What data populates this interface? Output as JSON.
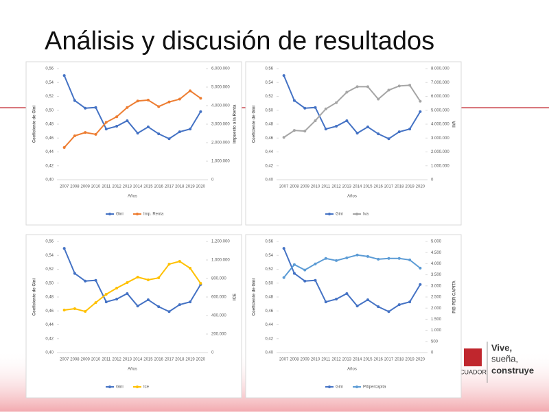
{
  "title": "Análisis y discusión de resultados",
  "logo": {
    "motto_1": "Vive,",
    "motto_2": "sueña,",
    "motto_3": "construye",
    "country": "CUADOR"
  },
  "chart_data": [
    {
      "type": "line",
      "categories": [
        "2007",
        "2008",
        "2009",
        "2010",
        "2011",
        "2012",
        "2013",
        "2014",
        "2015",
        "2016",
        "2017",
        "2018",
        "2019",
        "2020"
      ],
      "x_label": "Años",
      "y_label": "Coeficiente de Gini",
      "y2_label": "Impuesto a la Renta",
      "ylim": [
        0.4,
        0.56
      ],
      "yticks": [
        {
          "value": 0.4,
          "label": "0,40"
        },
        {
          "value": 0.42,
          "label": "0,42"
        },
        {
          "value": 0.44,
          "label": "0,44"
        },
        {
          "value": 0.46,
          "label": "0,46"
        },
        {
          "value": 0.48,
          "label": "0,48"
        },
        {
          "value": 0.5,
          "label": "0,50"
        },
        {
          "value": 0.52,
          "label": "0,52"
        },
        {
          "value": 0.54,
          "label": "0,54"
        },
        {
          "value": 0.56,
          "label": "0,56"
        }
      ],
      "y2lim": [
        0,
        6000000
      ],
      "y2ticks": [
        0,
        {
          "value": 1000000,
          "label": "1.000.000"
        },
        {
          "value": 2000000,
          "label": "2.000.000"
        },
        {
          "value": 3000000,
          "label": "3.000.000"
        },
        {
          "value": 4000000,
          "label": "4.000.000"
        },
        {
          "value": 5000000,
          "label": "5.000.000"
        },
        {
          "value": 6000000,
          "label": "6.000.000"
        }
      ],
      "series": [
        {
          "name": "Gini",
          "color": "#4472c4",
          "values": [
            0.55,
            0.514,
            0.503,
            0.504,
            0.473,
            0.477,
            0.485,
            0.467,
            0.476,
            0.466,
            0.459,
            0.469,
            0.473,
            0.498
          ]
        },
        {
          "name": "Imp. Renta",
          "color": "#ed7d31",
          "axis": "y2",
          "values": [
            1740000,
            2370000,
            2550000,
            2450000,
            3100000,
            3400000,
            3900000,
            4250000,
            4300000,
            3950000,
            4200000,
            4350000,
            4800000,
            4400000
          ]
        }
      ]
    },
    {
      "type": "line",
      "categories": [
        "2007",
        "2008",
        "2009",
        "2010",
        "2011",
        "2012",
        "2013",
        "2014",
        "2015",
        "2016",
        "2017",
        "2018",
        "2019",
        "2020"
      ],
      "x_label": "Años",
      "y_label": "Coeficiente de Gini",
      "y2_label": "IVA",
      "ylim": [
        0.4,
        0.56
      ],
      "yticks": [
        {
          "value": 0.4,
          "label": "0,40"
        },
        {
          "value": 0.42,
          "label": "0,42"
        },
        {
          "value": 0.44,
          "label": "0,44"
        },
        {
          "value": 0.46,
          "label": "0,46"
        },
        {
          "value": 0.48,
          "label": "0,48"
        },
        {
          "value": 0.5,
          "label": "0,50"
        },
        {
          "value": 0.52,
          "label": "0,52"
        },
        {
          "value": 0.54,
          "label": "0,54"
        },
        {
          "value": 0.56,
          "label": "0,56"
        }
      ],
      "y2lim": [
        0,
        8000000
      ],
      "y2ticks": [
        0,
        {
          "value": 1000000,
          "label": "1.000.000"
        },
        {
          "value": 2000000,
          "label": "2.000.000"
        },
        {
          "value": 3000000,
          "label": "3.000.000"
        },
        {
          "value": 4000000,
          "label": "4.000.000"
        },
        {
          "value": 5000000,
          "label": "5.000.000"
        },
        {
          "value": 6000000,
          "label": "6.000.000"
        },
        {
          "value": 7000000,
          "label": "7.000.000"
        },
        {
          "value": 8000000,
          "label": "8.000.000"
        }
      ],
      "series": [
        {
          "name": "Gini",
          "color": "#4472c4",
          "values": [
            0.55,
            0.514,
            0.503,
            0.504,
            0.473,
            0.477,
            0.485,
            0.467,
            0.476,
            0.466,
            0.459,
            0.469,
            0.473,
            0.498
          ]
        },
        {
          "name": "Iva",
          "color": "#a5a5a5",
          "axis": "y2",
          "values": [
            3050000,
            3550000,
            3500000,
            4250000,
            5100000,
            5550000,
            6300000,
            6700000,
            6700000,
            5800000,
            6450000,
            6750000,
            6800000,
            5650000
          ]
        }
      ]
    },
    {
      "type": "line",
      "categories": [
        "2007",
        "2008",
        "2009",
        "2010",
        "2011",
        "2012",
        "2013",
        "2014",
        "2015",
        "2016",
        "2017",
        "2018",
        "2019",
        "2020"
      ],
      "x_label": "Años",
      "y_label": "Coeficiente de Gini",
      "y2_label": "ICE",
      "ylim": [
        0.4,
        0.56
      ],
      "yticks": [
        {
          "value": 0.4,
          "label": "0,40"
        },
        {
          "value": 0.42,
          "label": "0,42"
        },
        {
          "value": 0.44,
          "label": "0,44"
        },
        {
          "value": 0.46,
          "label": "0,46"
        },
        {
          "value": 0.48,
          "label": "0,48"
        },
        {
          "value": 0.5,
          "label": "0,50"
        },
        {
          "value": 0.52,
          "label": "0,52"
        },
        {
          "value": 0.54,
          "label": "0,54"
        },
        {
          "value": 0.56,
          "label": "0,56"
        }
      ],
      "y2lim": [
        0,
        1200000
      ],
      "y2ticks": [
        0,
        {
          "value": 200000,
          "label": "200.000"
        },
        {
          "value": 400000,
          "label": "400.000"
        },
        {
          "value": 600000,
          "label": "600.000"
        },
        {
          "value": 800000,
          "label": "800.000"
        },
        {
          "value": 1000000,
          "label": "1.000.000"
        },
        {
          "value": 1200000,
          "label": "1.200.000"
        }
      ],
      "series": [
        {
          "name": "Gini",
          "color": "#4472c4",
          "values": [
            0.55,
            0.514,
            0.503,
            0.504,
            0.473,
            0.477,
            0.485,
            0.467,
            0.476,
            0.466,
            0.459,
            0.469,
            0.473,
            0.498
          ]
        },
        {
          "name": "Ice",
          "color": "#ffc000",
          "axis": "y2",
          "values": [
            459000,
            474000,
            444000,
            540000,
            630000,
            696000,
            756000,
            815000,
            785000,
            807000,
            955000,
            985000,
            911000,
            748000
          ]
        }
      ]
    },
    {
      "type": "line",
      "categories": [
        "2007",
        "2008",
        "2009",
        "2010",
        "2011",
        "2012",
        "2013",
        "2014",
        "2015",
        "2016",
        "2017",
        "2018",
        "2019",
        "2020"
      ],
      "x_label": "Años",
      "y_label": "Coeficiente de Gini",
      "y2_label": "PIB PER CAPITA",
      "ylim": [
        0.4,
        0.56
      ],
      "yticks": [
        {
          "value": 0.4,
          "label": "0,40"
        },
        {
          "value": 0.42,
          "label": "0,42"
        },
        {
          "value": 0.44,
          "label": "0,44"
        },
        {
          "value": 0.46,
          "label": "0,46"
        },
        {
          "value": 0.48,
          "label": "0,48"
        },
        {
          "value": 0.5,
          "label": "0,50"
        },
        {
          "value": 0.52,
          "label": "0,52"
        },
        {
          "value": 0.54,
          "label": "0,54"
        },
        {
          "value": 0.56,
          "label": "0,56"
        }
      ],
      "y2lim": [
        0,
        5000
      ],
      "y2ticks": [
        0,
        500,
        {
          "value": 1000,
          "label": "1.000"
        },
        {
          "value": 1500,
          "label": "1.500"
        },
        {
          "value": 2000,
          "label": "2.000"
        },
        {
          "value": 2500,
          "label": "2.500"
        },
        {
          "value": 3000,
          "label": "3.000"
        },
        {
          "value": 3500,
          "label": "3.500"
        },
        {
          "value": 4000,
          "label": "4.000"
        },
        {
          "value": 4500,
          "label": "4.500"
        },
        {
          "value": 5000,
          "label": "5.000"
        }
      ],
      "series": [
        {
          "name": "Gini",
          "color": "#4472c4",
          "values": [
            0.55,
            0.514,
            0.503,
            0.504,
            0.473,
            0.477,
            0.485,
            0.467,
            0.476,
            0.466,
            0.459,
            0.469,
            0.473,
            0.498
          ]
        },
        {
          "name": "Pibpercapita",
          "color": "#5b9bd5",
          "axis": "y2",
          "values": [
            3375,
            3960,
            3715,
            3990,
            4235,
            4140,
            4265,
            4390,
            4325,
            4200,
            4235,
            4235,
            4170,
            3800
          ]
        }
      ]
    }
  ]
}
